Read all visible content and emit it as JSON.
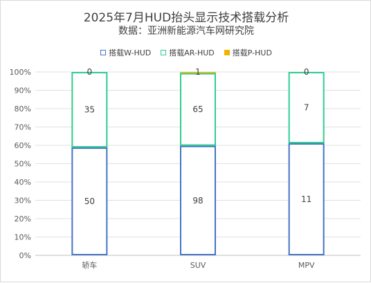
{
  "chart_data": {
    "type": "bar",
    "stacked": "percent",
    "title": "2025年7月HUD抬头显示技术搭载分析",
    "subtitle": "数据：亚洲新能源汽车网研究院",
    "categories": [
      "轿车",
      "SUV",
      "MPV"
    ],
    "series": [
      {
        "name": "搭载W-HUD",
        "values": [
          50,
          98,
          11
        ],
        "color": "#4472c4",
        "style": "outline"
      },
      {
        "name": "搭载AR-HUD",
        "values": [
          35,
          65,
          7
        ],
        "color": "#2ecc8f",
        "style": "outline"
      },
      {
        "name": "搭载P-HUD",
        "values": [
          0,
          1,
          0
        ],
        "color": "#f0b400",
        "style": "filled"
      }
    ],
    "ylim": [
      0,
      100
    ],
    "yticks": [
      "0%",
      "10%",
      "20%",
      "30%",
      "40%",
      "50%",
      "60%",
      "70%",
      "80%",
      "90%",
      "100%"
    ],
    "grid": true,
    "legend_position": "top"
  }
}
